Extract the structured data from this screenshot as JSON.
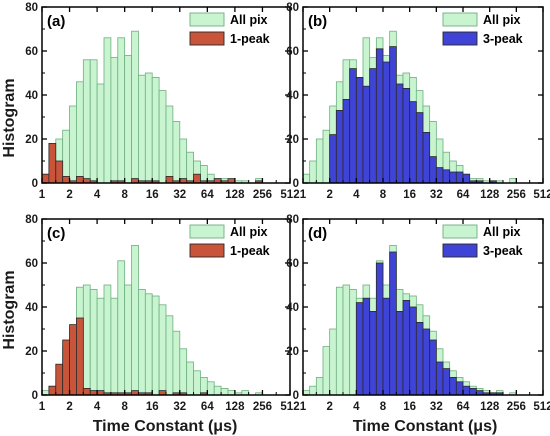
{
  "figure": {
    "ylabel": "Histogram",
    "xlabel": "Time Constant (μs)",
    "colors": {
      "all_pix_fill": "#c8f5d0",
      "all_pix_edge": "#6fae80",
      "one_peak": "#c8543a",
      "three_peak": "#3f43d6"
    }
  },
  "chart_data": [
    {
      "type": "bar",
      "panel_label": "(a)",
      "x_scale": "log2",
      "xlim": [
        1,
        512
      ],
      "ylim": [
        0,
        80
      ],
      "xticks": [
        1,
        2,
        4,
        8,
        16,
        32,
        64,
        128,
        256,
        512
      ],
      "yticks": [
        0,
        20,
        40,
        60,
        80
      ],
      "legend": {
        "position": "top-right",
        "entries": [
          "All pix",
          "1-peak"
        ]
      },
      "bins_per_octave": 4,
      "bin_start": 1,
      "series": [
        {
          "name": "All pix",
          "values": [
            4,
            10,
            20,
            24,
            35,
            46,
            56,
            56,
            45,
            66,
            57,
            66,
            58,
            69,
            49,
            50,
            48,
            42,
            35,
            28,
            20,
            14,
            10,
            8,
            4,
            2,
            2,
            1,
            1,
            1,
            0,
            2,
            0,
            0,
            0,
            0
          ]
        },
        {
          "name": "1-peak",
          "values": [
            4,
            18,
            10,
            3,
            1,
            3,
            2,
            1,
            0,
            0,
            1,
            1,
            0,
            2,
            1,
            1,
            1,
            0,
            3,
            1,
            2,
            1,
            4,
            1,
            1,
            2,
            1,
            2,
            0,
            0,
            0,
            1,
            0,
            0,
            0,
            0
          ]
        }
      ]
    },
    {
      "type": "bar",
      "panel_label": "(b)",
      "x_scale": "log2",
      "xlim": [
        1,
        512
      ],
      "ylim": [
        0,
        80
      ],
      "xticks": [
        1,
        2,
        4,
        8,
        16,
        32,
        64,
        128,
        256,
        512
      ],
      "yticks": [
        0,
        20,
        40,
        60,
        80
      ],
      "legend": {
        "position": "top-right",
        "entries": [
          "All pix",
          "3-peak"
        ]
      },
      "bins_per_octave": 4,
      "bin_start": 1,
      "series": [
        {
          "name": "All pix",
          "values": [
            4,
            10,
            20,
            24,
            35,
            46,
            56,
            56,
            45,
            66,
            57,
            66,
            58,
            69,
            49,
            50,
            48,
            42,
            35,
            28,
            20,
            14,
            10,
            8,
            4,
            2,
            2,
            1,
            1,
            1,
            0,
            2,
            0,
            0,
            0,
            0
          ]
        },
        {
          "name": "3-peak",
          "values": [
            0,
            0,
            0,
            0,
            22,
            33,
            38,
            52,
            48,
            44,
            52,
            61,
            55,
            62,
            45,
            43,
            37,
            32,
            23,
            12,
            7,
            6,
            5,
            5,
            4,
            1,
            1,
            0,
            1,
            0,
            0,
            0,
            0,
            0,
            0,
            0
          ]
        }
      ]
    },
    {
      "type": "bar",
      "panel_label": "(c)",
      "x_scale": "log2",
      "xlim": [
        1,
        512
      ],
      "ylim": [
        0,
        80
      ],
      "xticks": [
        1,
        2,
        4,
        8,
        16,
        32,
        64,
        128,
        256,
        512
      ],
      "yticks": [
        0,
        20,
        40,
        60,
        80
      ],
      "legend": {
        "position": "top-right",
        "entries": [
          "All pix",
          "1-peak"
        ]
      },
      "bins_per_octave": 4,
      "bin_start": 1,
      "series": [
        {
          "name": "All pix",
          "values": [
            2,
            4,
            8,
            22,
            30,
            49,
            50,
            48,
            44,
            50,
            44,
            61,
            50,
            68,
            48,
            46,
            45,
            41,
            36,
            29,
            21,
            15,
            11,
            8,
            6,
            4,
            3,
            2,
            1,
            2,
            0,
            1,
            0,
            0,
            0,
            0
          ]
        },
        {
          "name": "1-peak",
          "values": [
            0,
            4,
            14,
            25,
            32,
            35,
            3,
            2,
            2,
            1,
            1,
            1,
            1,
            2,
            1,
            1,
            0,
            2,
            0,
            1,
            1,
            0,
            0,
            1,
            0,
            0,
            0,
            0,
            0,
            0,
            0,
            0,
            0,
            0,
            0,
            0
          ]
        }
      ]
    },
    {
      "type": "bar",
      "panel_label": "(d)",
      "x_scale": "log2",
      "xlim": [
        1,
        512
      ],
      "ylim": [
        0,
        80
      ],
      "xticks": [
        1,
        2,
        4,
        8,
        16,
        32,
        64,
        128,
        256,
        512
      ],
      "yticks": [
        0,
        20,
        40,
        60,
        80
      ],
      "legend": {
        "position": "top-right",
        "entries": [
          "All pix",
          "3-peak"
        ]
      },
      "bins_per_octave": 4,
      "bin_start": 1,
      "series": [
        {
          "name": "All pix",
          "values": [
            2,
            4,
            8,
            22,
            30,
            49,
            50,
            48,
            44,
            50,
            44,
            61,
            50,
            68,
            48,
            46,
            45,
            41,
            36,
            29,
            21,
            15,
            11,
            8,
            6,
            4,
            3,
            2,
            1,
            2,
            0,
            1,
            0,
            0,
            0,
            0
          ]
        },
        {
          "name": "3-peak",
          "values": [
            0,
            0,
            0,
            0,
            0,
            0,
            0,
            0,
            42,
            44,
            38,
            60,
            44,
            65,
            38,
            43,
            40,
            33,
            30,
            25,
            15,
            12,
            8,
            6,
            4,
            3,
            2,
            1,
            1,
            1,
            0,
            0,
            0,
            0,
            0,
            0
          ]
        }
      ]
    }
  ]
}
